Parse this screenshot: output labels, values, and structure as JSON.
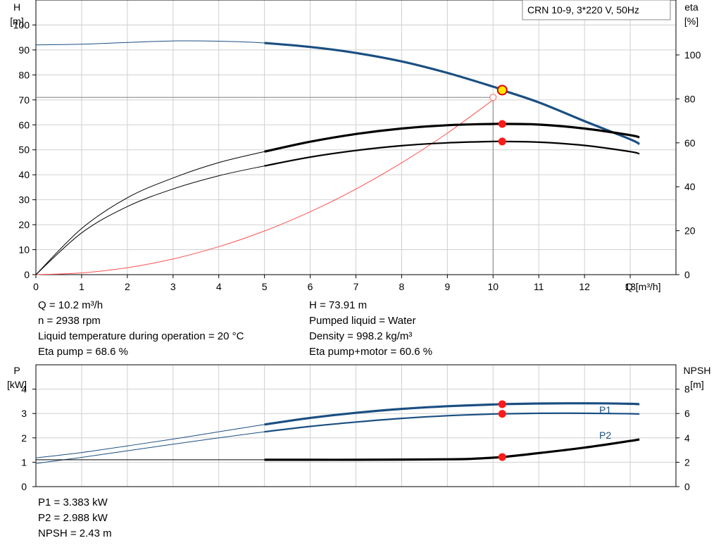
{
  "legend_box": "CRN 10-9, 3*220 V, 50Hz",
  "chart_data": [
    {
      "type": "line",
      "xlabel": "Q [m³/h]",
      "ylabel": [
        "H",
        "[m]"
      ],
      "y2label": [
        "eta",
        "[%]"
      ],
      "xlim": [
        0,
        14
      ],
      "xticks": [
        "0",
        "1",
        "2",
        "3",
        "4",
        "5",
        "6",
        "7",
        "8",
        "9",
        "10",
        "11",
        "12",
        "13"
      ],
      "ylim": [
        0,
        110
      ],
      "yticks": [
        "0",
        "10",
        "20",
        "30",
        "40",
        "50",
        "60",
        "70",
        "80",
        "90",
        "100"
      ],
      "y2lim": [
        0,
        125
      ],
      "y2ticks": [
        "0",
        "20",
        "40",
        "60",
        "80",
        "100"
      ],
      "grid": true,
      "series": [
        {
          "axis": "left",
          "color": "#1a4f82",
          "x": [
            0,
            1,
            2,
            3,
            4,
            5,
            6,
            7,
            8,
            9,
            10,
            10.2,
            11,
            12,
            13,
            13.2
          ],
          "y": [
            92,
            92.3,
            93,
            93.6,
            93.5,
            92.8,
            91.2,
            88.8,
            85.4,
            80.8,
            75.3,
            73.91,
            69.0,
            61.5,
            54.2,
            52.3
          ]
        },
        {
          "axis": "right",
          "color": "#000000",
          "x": [
            0,
            1,
            2,
            3,
            4,
            5,
            6,
            7,
            8,
            9,
            10,
            10.2,
            11,
            12,
            13,
            13.2
          ],
          "y": [
            0,
            21,
            35,
            44,
            51,
            56,
            60.5,
            64,
            66.5,
            68,
            68.6,
            68.6,
            68.3,
            66.5,
            63.5,
            62.5
          ]
        },
        {
          "axis": "right",
          "color": "#000000",
          "x": [
            0,
            1,
            2,
            3,
            4,
            5,
            6,
            7,
            8,
            9,
            10,
            10.2,
            11,
            12,
            13,
            13.2
          ],
          "y": [
            0,
            19,
            31,
            39,
            45,
            49.5,
            53.5,
            56.5,
            58.7,
            60,
            60.6,
            60.6,
            60.3,
            58.8,
            56,
            55
          ]
        },
        {
          "axis": "left",
          "color": "#ff5050",
          "x": [
            0,
            1,
            2,
            3,
            4,
            5,
            6,
            7,
            8,
            9,
            10
          ],
          "y": [
            0,
            0.7,
            2.8,
            6.3,
            11.2,
            17.5,
            25.2,
            34.3,
            44.8,
            56.7,
            70
          ]
        }
      ],
      "operating_point": {
        "Q": 10.2,
        "H": 73.91,
        "eta_pump": 68.6,
        "eta_total": 60.6,
        "H_ref": 71
      }
    },
    {
      "type": "line",
      "xlim": [
        0,
        14
      ],
      "ylabel": [
        "P",
        "[kW]"
      ],
      "ylim": [
        0,
        5
      ],
      "yticks": [
        "0",
        "1",
        "2",
        "3",
        "4"
      ],
      "y2label": [
        "NPSH",
        "[m]"
      ],
      "y2lim": [
        0,
        10
      ],
      "y2ticks": [
        "0",
        "2",
        "4",
        "6",
        "8"
      ],
      "grid": true,
      "series": [
        {
          "name": "P1",
          "axis": "left",
          "color": "#1a4f82",
          "x": [
            0,
            1,
            2,
            3,
            4,
            5,
            6,
            7,
            8,
            9,
            10,
            10.2,
            11,
            12,
            13,
            13.2
          ],
          "y": [
            1.18,
            1.4,
            1.67,
            1.95,
            2.25,
            2.55,
            2.82,
            3.03,
            3.19,
            3.3,
            3.37,
            3.383,
            3.41,
            3.42,
            3.4,
            3.38
          ]
        },
        {
          "name": "P2",
          "axis": "left",
          "color": "#1a4f82",
          "x": [
            0,
            1,
            2,
            3,
            4,
            5,
            6,
            7,
            8,
            9,
            10,
            10.2,
            11,
            12,
            13,
            13.2
          ],
          "y": [
            0.95,
            1.2,
            1.47,
            1.74,
            2.0,
            2.25,
            2.47,
            2.65,
            2.8,
            2.91,
            2.98,
            2.988,
            3.01,
            3.01,
            2.99,
            2.98
          ]
        },
        {
          "name": "NPSH",
          "axis": "right",
          "color": "#000000",
          "x": [
            0,
            1,
            2,
            3,
            4,
            5,
            6,
            7,
            8,
            9,
            9.5,
            10.2,
            11,
            12,
            13,
            13.2
          ],
          "y": [
            2.2,
            2.2,
            2.2,
            2.2,
            2.2,
            2.2,
            2.2,
            2.2,
            2.22,
            2.24,
            2.28,
            2.43,
            2.75,
            3.2,
            3.75,
            3.88
          ]
        }
      ],
      "operating_point": {
        "Q": 10.2,
        "P1": 3.383,
        "P2": 2.988,
        "NPSH": 2.43
      }
    }
  ],
  "info_top_left": [
    "Q = 10.2 m³/h",
    "n = 2938 rpm",
    "Liquid temperature during operation = 20 °C",
    "Eta pump = 68.6 %"
  ],
  "info_top_right": [
    "H = 73.91 m",
    "Pumped liquid = Water",
    "Density = 998.2 kg/m³",
    "Eta pump+motor = 60.6 %"
  ],
  "info_bottom": [
    "P1 = 3.383 kW",
    "P2 = 2.988 kW",
    "NPSH = 2.43 m"
  ]
}
